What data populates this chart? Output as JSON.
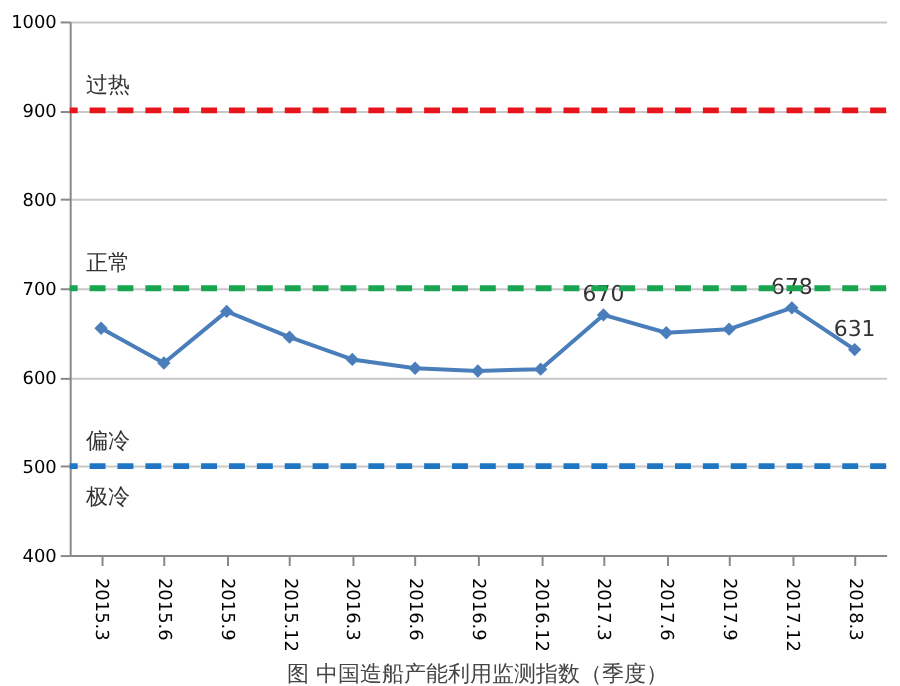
{
  "chart_data": {
    "type": "line",
    "title": "图  中国造船产能利用监测指数（季度）",
    "categories": [
      "2015.3",
      "2015.6",
      "2015.9",
      "2015.12",
      "2016.3",
      "2016.6",
      "2016.9",
      "2016.12",
      "2017.3",
      "2017.6",
      "2017.9",
      "2017.12",
      "2018.3"
    ],
    "series": [
      {
        "color": "#4a7ebb",
        "values": [
          655,
          616,
          674,
          645,
          620,
          610,
          607,
          609,
          670,
          650,
          654,
          678,
          631
        ],
        "value_labels": [
          null,
          null,
          null,
          null,
          null,
          null,
          null,
          null,
          "670",
          null,
          null,
          "678",
          "631"
        ]
      }
    ],
    "ylim": [
      400,
      1000
    ],
    "yticks": [
      400,
      500,
      600,
      700,
      800,
      900,
      1000
    ],
    "grid": "y",
    "marker": "diamond",
    "line_style": "solid",
    "ref_lines": [
      {
        "axis": "y",
        "value": 900,
        "label": "过热",
        "color": "#e8141b",
        "line_style": "dashed"
      },
      {
        "axis": "y",
        "value": 700,
        "label": "正常",
        "color": "#1aa552",
        "line_style": "dashed"
      },
      {
        "axis": "y",
        "value": 500,
        "label": "偏冷",
        "color": "#1f77c4",
        "line_style": "dashed"
      }
    ],
    "annotations": [
      "极冷"
    ]
  }
}
